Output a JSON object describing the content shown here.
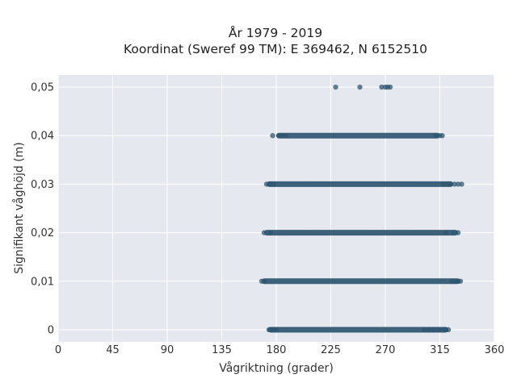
{
  "chart_data": {
    "type": "scatter",
    "title": "År 1979 - 2019",
    "subtitle": "Koordinat (Sweref 99 TM): E 369462, N 6152510",
    "xlabel": "Vågriktning (grader)",
    "ylabel": "Signifikant våghöjd (m)",
    "xlim": [
      0,
      360
    ],
    "ylim": [
      -0.0025,
      0.0525
    ],
    "x_ticks": [
      0,
      45,
      90,
      135,
      180,
      225,
      270,
      315,
      360
    ],
    "x_tick_labels": [
      "0",
      "45",
      "90",
      "135",
      "180",
      "225",
      "270",
      "315",
      "360"
    ],
    "y_ticks": [
      0,
      0.01,
      0.02,
      0.03,
      0.04,
      0.05
    ],
    "y_tick_labels": [
      "0",
      "0,01",
      "0,02",
      "0,03",
      "0,04",
      "0,05"
    ],
    "grid": true,
    "background": "#e5e8ef",
    "point_color": "#2f5570",
    "bands": [
      {
        "y": 0,
        "dense_range": [
          173,
          322
        ],
        "points": [
          174,
          176,
          178,
          180,
          302,
          306,
          310,
          314,
          318,
          320,
          322
        ]
      },
      {
        "y": 0.01,
        "dense_range": [
          168,
          332
        ],
        "points": [
          168,
          170,
          325,
          328,
          330,
          332
        ]
      },
      {
        "y": 0.02,
        "dense_range": [
          170,
          330
        ],
        "points": [
          170,
          175,
          320,
          326,
          330
        ]
      },
      {
        "y": 0.03,
        "dense_range": [
          172,
          326
        ],
        "points": [
          172,
          175,
          178,
          318,
          322,
          324,
          327,
          330,
          333
        ]
      },
      {
        "y": 0.04,
        "dense_range": [
          180,
          315
        ],
        "points": [
          177,
          182,
          185,
          188,
          312,
          315,
          317
        ]
      },
      {
        "y": 0.05,
        "dense_range": null,
        "points": [
          229,
          249,
          267,
          270,
          272,
          274
        ]
      }
    ]
  }
}
